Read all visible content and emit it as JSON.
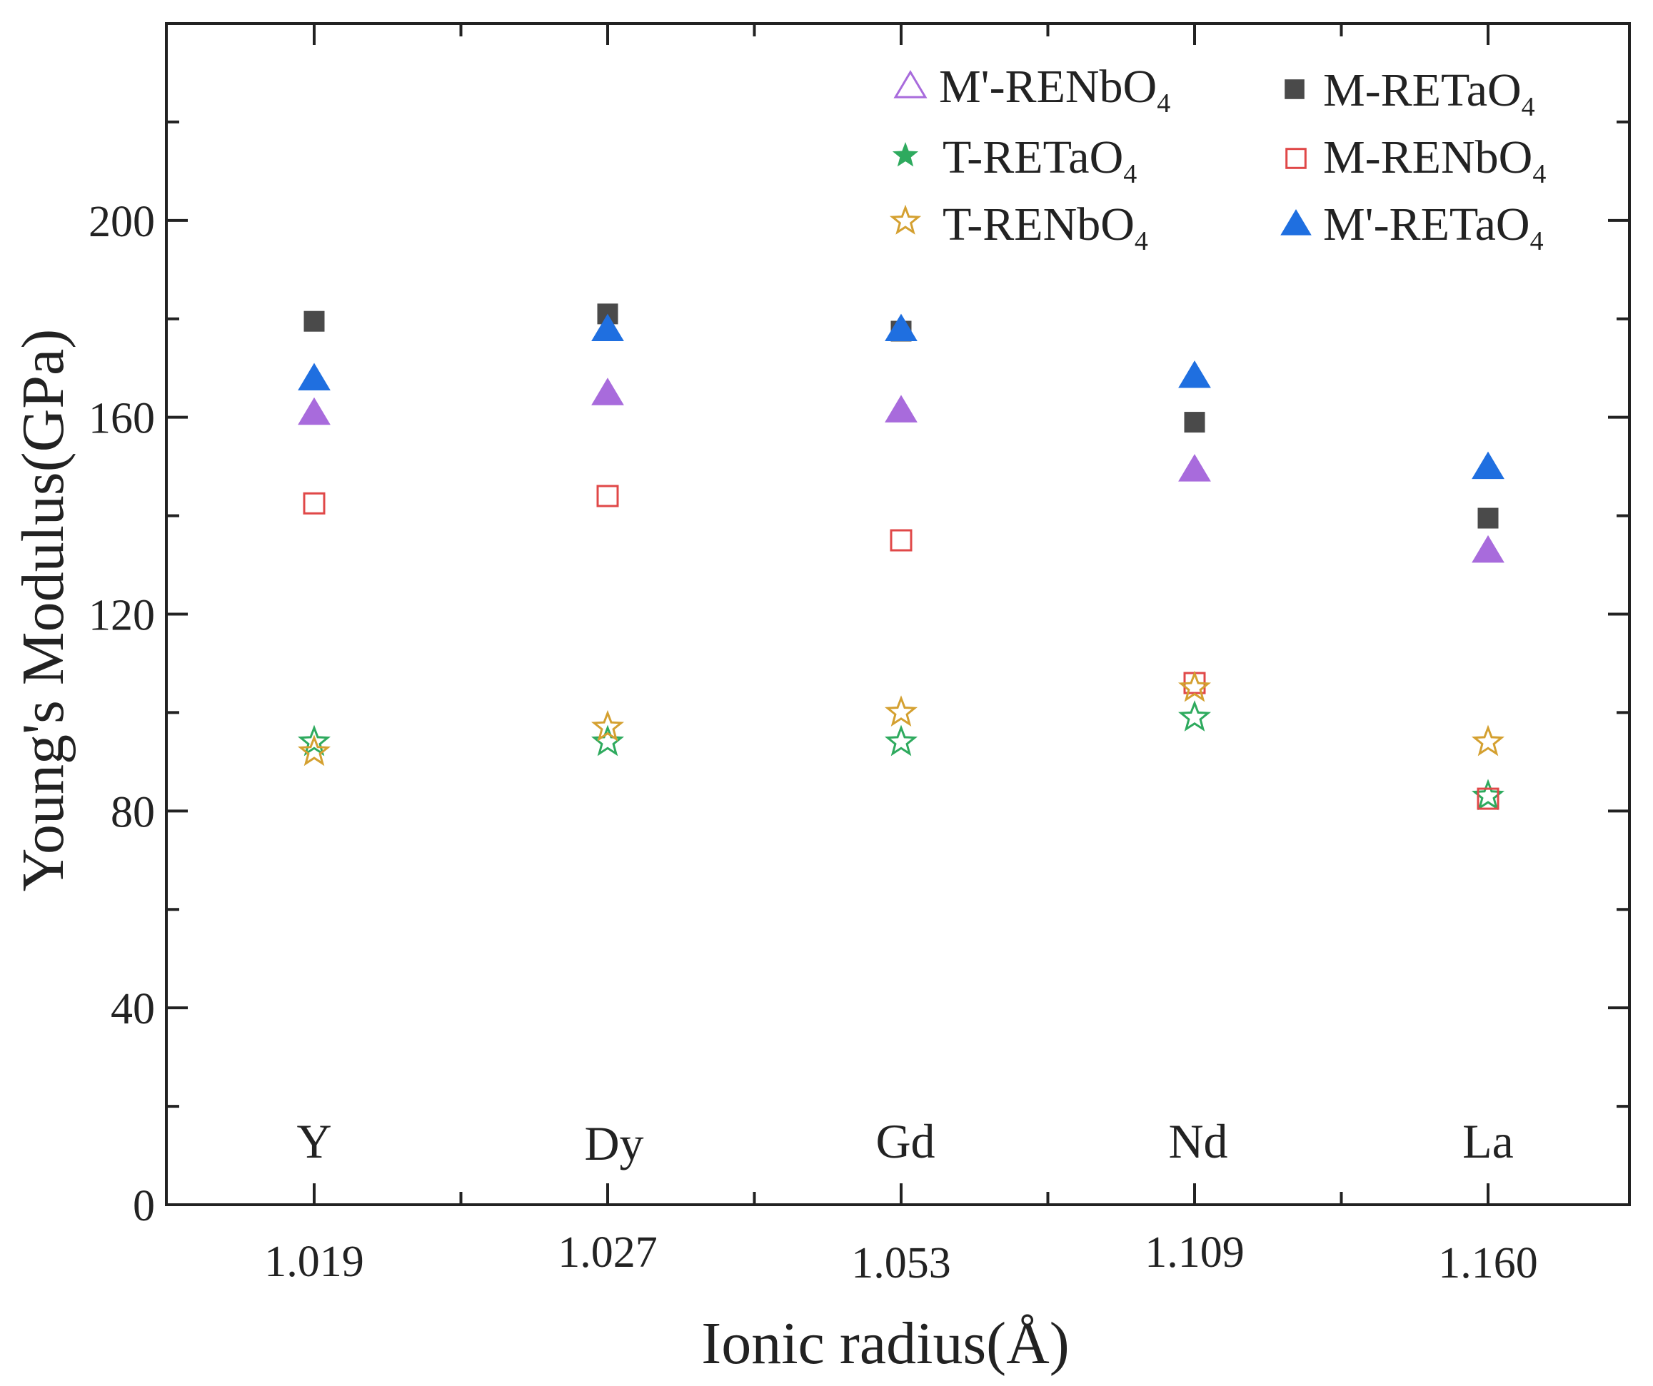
{
  "chart_data": {
    "type": "scatter",
    "title": "",
    "xlabel": "Ionic radius(Å)",
    "ylabel": "Young's Modulus(GPa)",
    "categories": [
      "1.019",
      "1.027",
      "1.053",
      "1.109",
      "1.160"
    ],
    "element_labels": [
      "Y",
      "Dy",
      "Gd",
      "Nd",
      "La"
    ],
    "ylim": [
      0,
      240
    ],
    "yticks": [
      "0",
      "40",
      "80",
      "120",
      "160",
      "200"
    ],
    "grid": false,
    "legend_position": "top-right",
    "series": [
      {
        "name": "M'-RENbO4",
        "label_main": "M'-RENbO",
        "label_sub": "4",
        "marker": "triangle",
        "filled": true,
        "color": "#A86BDC",
        "values": [
          161,
          165,
          161.5,
          149.5,
          133
        ]
      },
      {
        "name": "M-RETaO4",
        "label_main": "M-RETaO",
        "label_sub": "4",
        "marker": "square",
        "filled": true,
        "color": "#4A4A4A",
        "values": [
          179.5,
          181,
          177.5,
          159,
          139.5
        ]
      },
      {
        "name": "T-RETaO4",
        "label_main": "T-RETaO",
        "label_sub": "4",
        "marker": "star",
        "filled": false,
        "color": "#2EAA5E",
        "values": [
          94,
          94,
          94,
          99,
          83
        ]
      },
      {
        "name": "M-RENbO4",
        "label_main": "M-RENbO",
        "label_sub": "4",
        "marker": "square",
        "filled": false,
        "color": "#E04848",
        "values": [
          142.5,
          144,
          135,
          106,
          82.5
        ]
      },
      {
        "name": "T-RENbO4",
        "label_main": "T-RENbO",
        "label_sub": "4",
        "marker": "star",
        "filled": false,
        "color": "#D4A030",
        "values": [
          92,
          97,
          100,
          105,
          94
        ]
      },
      {
        "name": "M'-RETaO4",
        "label_main": "M'-RETaO",
        "label_sub": "4",
        "marker": "triangle",
        "filled": true,
        "color": "#1F6FE0",
        "values": [
          168,
          178,
          178,
          168.5,
          150
        ]
      }
    ]
  }
}
